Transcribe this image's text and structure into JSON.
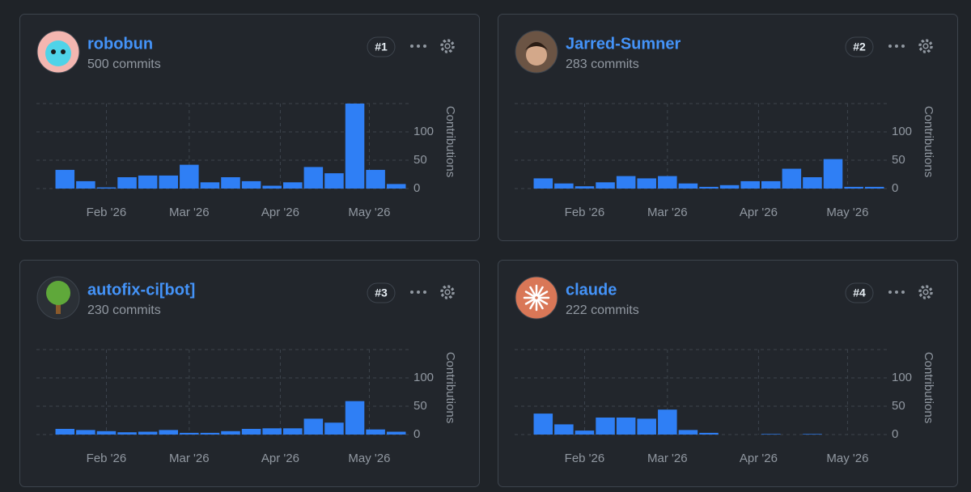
{
  "cards": [
    {
      "name": "robobun",
      "commits": "500 commits",
      "rank": "#1",
      "chart_data": {
        "type": "bar",
        "color": "#2f7ff5",
        "values": [
          33,
          13,
          2,
          20,
          23,
          23,
          42,
          11,
          20,
          13,
          5,
          11,
          38,
          27,
          150,
          33,
          8
        ],
        "xlim": [
          -0.5,
          16.5
        ],
        "xticks": [
          {
            "value": 2,
            "label": "Feb '26"
          },
          {
            "value": 6,
            "label": "Mar '26"
          },
          {
            "value": 10.4,
            "label": "Apr '26"
          },
          {
            "value": 14.7,
            "label": "May '26"
          }
        ],
        "ylim": [
          0,
          150
        ],
        "yticks": [
          0,
          50,
          100
        ],
        "ylabel": "Contributions",
        "grid": true
      }
    },
    {
      "name": "Jarred-Sumner",
      "commits": "283 commits",
      "rank": "#2",
      "chart_data": {
        "type": "bar",
        "color": "#2f7ff5",
        "values": [
          18,
          9,
          4,
          11,
          22,
          18,
          22,
          9,
          3,
          6,
          13,
          13,
          35,
          20,
          52,
          3,
          3
        ],
        "xlim": [
          -0.5,
          16.5
        ],
        "xticks": [
          {
            "value": 2,
            "label": "Feb '26"
          },
          {
            "value": 6,
            "label": "Mar '26"
          },
          {
            "value": 10.4,
            "label": "Apr '26"
          },
          {
            "value": 14.7,
            "label": "May '26"
          }
        ],
        "ylim": [
          0,
          150
        ],
        "yticks": [
          0,
          50,
          100
        ],
        "ylabel": "Contributions",
        "grid": true
      }
    },
    {
      "name": "autofix-ci[bot]",
      "commits": "230 commits",
      "rank": "#3",
      "chart_data": {
        "type": "bar",
        "color": "#2f7ff5",
        "values": [
          10,
          8,
          6,
          4,
          5,
          8,
          3,
          3,
          6,
          10,
          11,
          11,
          28,
          21,
          59,
          9,
          5
        ],
        "xlim": [
          -0.5,
          16.5
        ],
        "xticks": [
          {
            "value": 2,
            "label": "Feb '26"
          },
          {
            "value": 6,
            "label": "Mar '26"
          },
          {
            "value": 10.4,
            "label": "Apr '26"
          },
          {
            "value": 14.7,
            "label": "May '26"
          }
        ],
        "ylim": [
          0,
          150
        ],
        "yticks": [
          0,
          50,
          100
        ],
        "ylabel": "Contributions",
        "grid": true
      }
    },
    {
      "name": "claude",
      "commits": "222 commits",
      "rank": "#4",
      "chart_data": {
        "type": "bar",
        "color": "#2f7ff5",
        "values": [
          37,
          18,
          7,
          30,
          30,
          28,
          44,
          8,
          3,
          0,
          0,
          1,
          0,
          1,
          0,
          0,
          0
        ],
        "xlim": [
          -0.5,
          16.5
        ],
        "xticks": [
          {
            "value": 2,
            "label": "Feb '26"
          },
          {
            "value": 6,
            "label": "Mar '26"
          },
          {
            "value": 10.4,
            "label": "Apr '26"
          },
          {
            "value": 14.7,
            "label": "May '26"
          }
        ],
        "ylim": [
          0,
          150
        ],
        "yticks": [
          0,
          50,
          100
        ],
        "ylabel": "Contributions",
        "grid": true
      }
    }
  ]
}
